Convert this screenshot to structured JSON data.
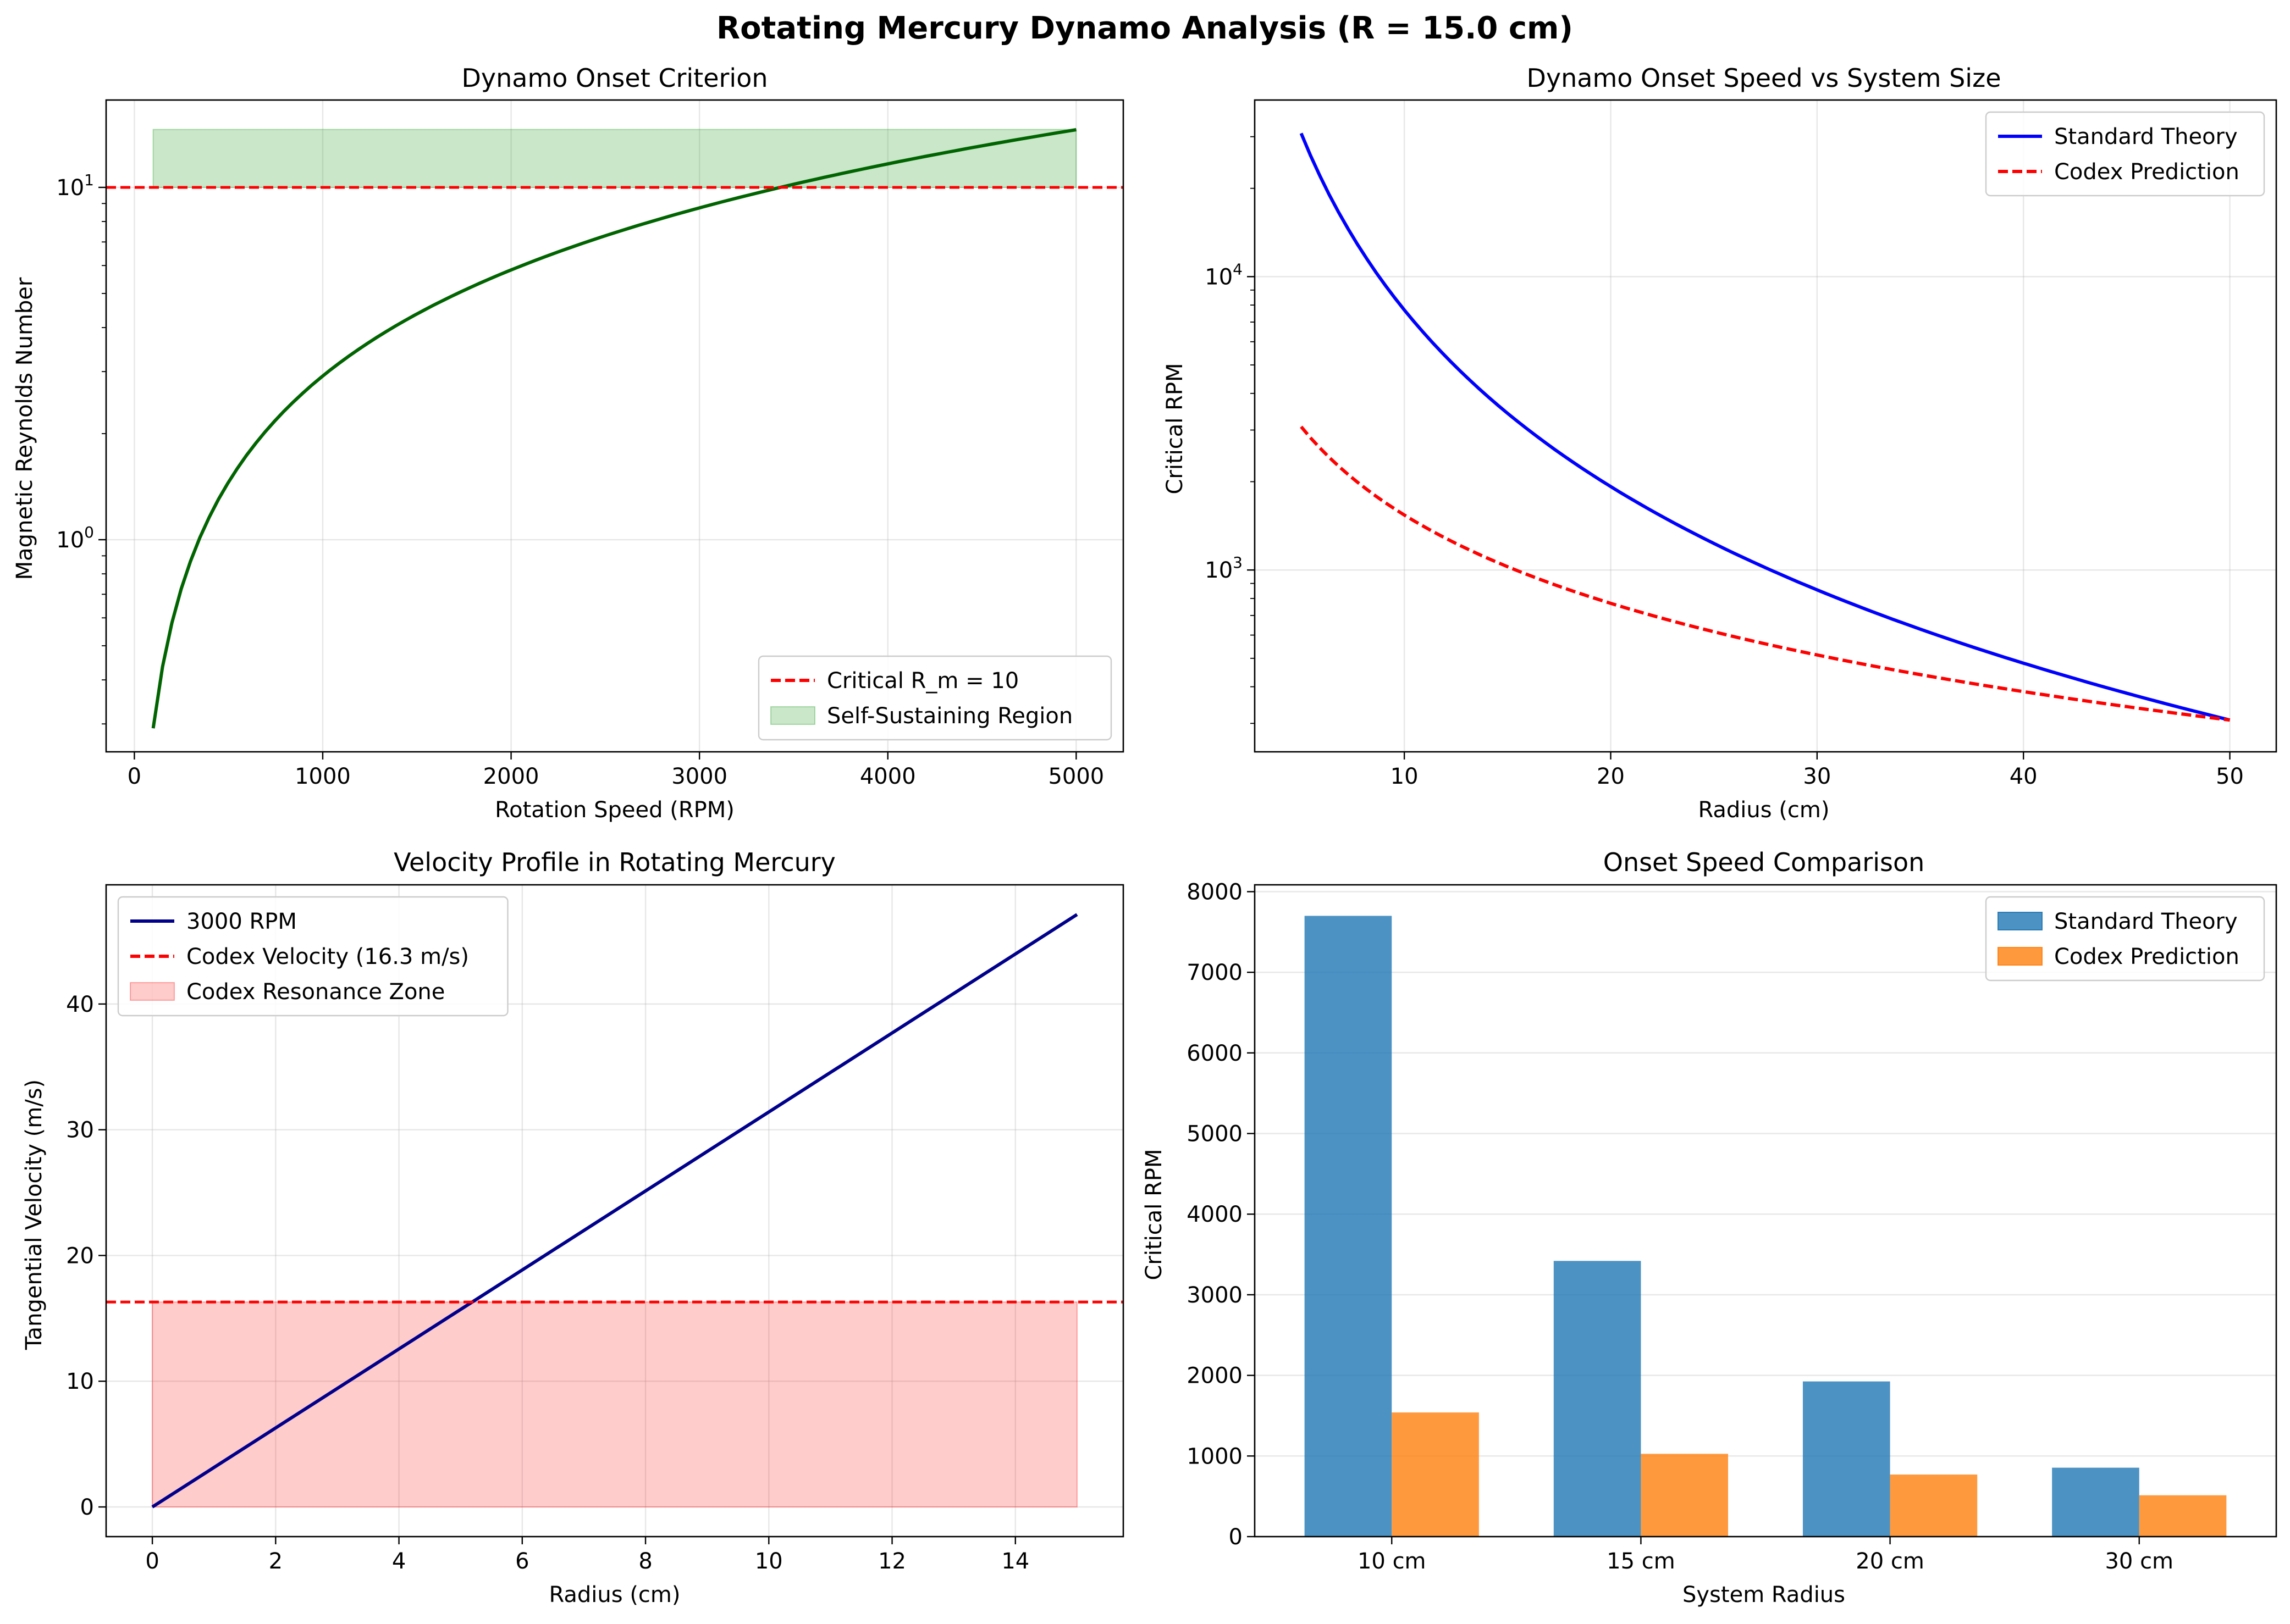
{
  "figure": {
    "suptitle": "Rotating Mercury Dynamo Analysis (R = 15.0 cm)"
  },
  "chart_data": [
    {
      "id": "onset",
      "type": "line",
      "title": "Dynamo Onset Criterion",
      "xlabel": "Rotation Speed (RPM)",
      "ylabel": "Magnetic Reynolds Number",
      "xlim": [
        -150,
        5250
      ],
      "ylim": [
        0.25,
        17.7
      ],
      "yscale": "log",
      "grid": true,
      "legend_position": "lower-right",
      "xticks": [
        0,
        1000,
        2000,
        3000,
        4000,
        5000
      ],
      "yticks": [
        1,
        10
      ],
      "ytick_labels": [
        [
          "10",
          "0"
        ],
        [
          "10",
          "1"
        ]
      ],
      "series": [
        {
          "name": "",
          "kind": "curve",
          "color": "#006400",
          "style": "solid",
          "formula": "Rm = 10 * (RPM / 3430)",
          "x_range": [
            100,
            5000
          ],
          "samples": 100
        }
      ],
      "hlines": [
        {
          "name": "Critical R_m = 10",
          "y": 10,
          "color": "#ff0000",
          "style": "dashed"
        }
      ],
      "fill": {
        "name": "Self-Sustaining Region",
        "x_range": [
          100,
          5000
        ],
        "y_range": [
          10,
          14.6
        ],
        "color": "#2ca02c",
        "alpha": 0.25
      },
      "legend": [
        {
          "label": "Critical R_m = 10",
          "kind": "line",
          "color": "#ff0000",
          "style": "dashed"
        },
        {
          "label": "Self-Sustaining Region",
          "kind": "patch",
          "color": "#2ca02c",
          "alpha": 0.25
        }
      ]
    },
    {
      "id": "size",
      "type": "line",
      "title": "Dynamo Onset Speed vs System Size",
      "xlabel": "Radius (cm)",
      "ylabel": "Critical RPM",
      "xlim": [
        2.75,
        52.25
      ],
      "ylim": [
        240,
        40000
      ],
      "yscale": "log",
      "grid": true,
      "legend_position": "top-right",
      "xticks": [
        10,
        20,
        30,
        40,
        50
      ],
      "yticks": [
        1000,
        10000
      ],
      "ytick_labels": [
        [
          "10",
          "3"
        ],
        [
          "10",
          "4"
        ]
      ],
      "series": [
        {
          "name": "Standard Theory",
          "kind": "curve",
          "color": "#0000ff",
          "style": "solid",
          "formula": "RPM = 7700 * (10 / r)^2",
          "x_range": [
            5,
            50
          ],
          "samples": 100
        },
        {
          "name": "Codex Prediction",
          "kind": "curve",
          "color": "#ff0000",
          "style": "dashed",
          "formula": "RPM = 1540 * (10 / r)",
          "x_range": [
            5,
            50
          ],
          "samples": 100
        }
      ],
      "legend": [
        {
          "label": "Standard Theory",
          "kind": "line",
          "color": "#0000ff",
          "style": "solid"
        },
        {
          "label": "Codex Prediction",
          "kind": "line",
          "color": "#ff0000",
          "style": "dashed"
        }
      ]
    },
    {
      "id": "velocity",
      "type": "line",
      "title": "Velocity Profile in Rotating Mercury",
      "xlabel": "Radius (cm)",
      "ylabel": "Tangential Velocity (m/s)",
      "xlim": [
        -0.75,
        15.75
      ],
      "ylim": [
        -2.36,
        49.48
      ],
      "yscale": "linear",
      "grid": true,
      "legend_position": "top-left",
      "xticks": [
        0,
        2,
        4,
        6,
        8,
        10,
        12,
        14
      ],
      "yticks": [
        0,
        10,
        20,
        30,
        40
      ],
      "series": [
        {
          "name": "3000 RPM",
          "kind": "points",
          "color": "#00008b",
          "style": "solid",
          "x": [
            0,
            15
          ],
          "y": [
            0,
            47.12
          ]
        }
      ],
      "hlines": [
        {
          "name": "Codex Velocity (16.3 m/s)",
          "y": 16.3,
          "color": "#ff0000",
          "style": "dashed"
        }
      ],
      "fill": {
        "name": "Codex Resonance Zone",
        "x_range": [
          0,
          15
        ],
        "y_range": [
          0,
          16.3
        ],
        "color": "#ff0000",
        "alpha": 0.2
      },
      "legend": [
        {
          "label": "3000 RPM",
          "kind": "line",
          "color": "#00008b",
          "style": "solid"
        },
        {
          "label": "Codex Velocity (16.3 m/s)",
          "kind": "line",
          "color": "#ff0000",
          "style": "dashed"
        },
        {
          "label": "Codex Resonance Zone",
          "kind": "patch",
          "color": "#ff0000",
          "alpha": 0.2
        }
      ]
    },
    {
      "id": "compare",
      "type": "bar",
      "title": "Onset Speed Comparison",
      "xlabel": "System Radius",
      "ylabel": "Critical RPM",
      "ylim": [
        0,
        8085
      ],
      "yscale": "linear",
      "grid": true,
      "legend_position": "top-right",
      "categories": [
        "10 cm",
        "15 cm",
        "20 cm",
        "30 cm"
      ],
      "yticks": [
        0,
        1000,
        2000,
        3000,
        4000,
        5000,
        6000,
        7000,
        8000
      ],
      "series": [
        {
          "name": "Standard Theory",
          "color": "#1f77b4",
          "alpha": 0.8,
          "values": [
            7700,
            3420,
            1925,
            855
          ]
        },
        {
          "name": "Codex Prediction",
          "color": "#ff7f0e",
          "alpha": 0.8,
          "values": [
            1540,
            1027,
            770,
            513
          ]
        }
      ],
      "legend": [
        {
          "label": "Standard Theory",
          "kind": "patch",
          "color": "#1f77b4",
          "alpha": 0.8
        },
        {
          "label": "Codex Prediction",
          "kind": "patch",
          "color": "#ff7f0e",
          "alpha": 0.8
        }
      ]
    }
  ]
}
